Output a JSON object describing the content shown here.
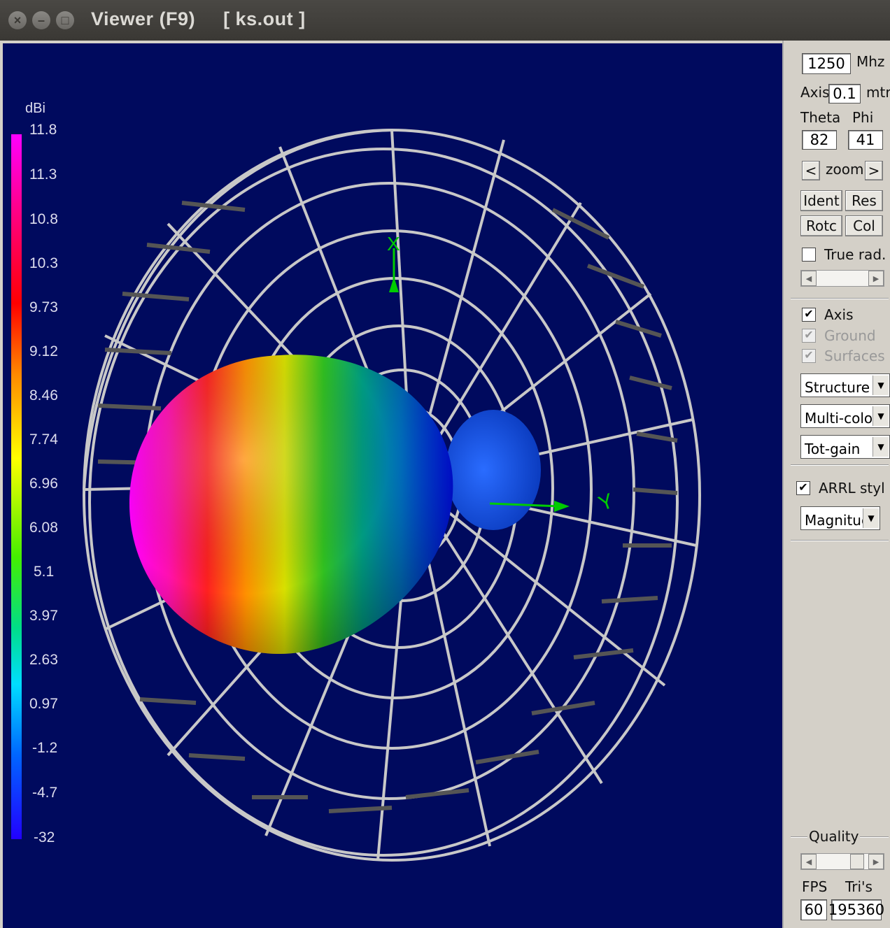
{
  "window": {
    "title": "Viewer (F9)     [ ks.out ]",
    "buttons": [
      "close-icon",
      "minimize-icon",
      "maximize-icon"
    ]
  },
  "legend": {
    "unit": "dBi",
    "ticks": [
      "11.8",
      "11.3",
      "10.8",
      "10.3",
      "9.73",
      "9.12",
      "8.46",
      "7.74",
      "6.96",
      "6.08",
      "5.1",
      "3.97",
      "2.63",
      "0.97",
      "-1.2",
      "-4.7",
      "-32"
    ]
  },
  "axes": {
    "x_label": "X",
    "y_label": "Y"
  },
  "panel": {
    "frequency": "1250",
    "frequency_unit": "Mhz",
    "axis_label": "Axis",
    "axis_value": "0.1",
    "axis_unit": "mtr",
    "theta_label": "Theta",
    "phi_label": "Phi",
    "theta_value": "82",
    "phi_value": "41",
    "zoom_left": "<",
    "zoom_label": "zoom",
    "zoom_right": ">",
    "ident_label": "Ident",
    "res_label": "Res",
    "rotc_label": "Rotc",
    "col_label": "Col",
    "true_rad_label": "True rad.",
    "true_rad_checked": false,
    "axis_check_label": "Axis",
    "ground_label": "Ground",
    "surfaces_label": "Surfaces",
    "structure_select": "Structure",
    "color_select": "Multi-colo",
    "gain_select": "Tot-gain",
    "arrl_label": "ARRL styl",
    "magnitude_select": "Magnituc",
    "quality_label": "Quality",
    "fps_label": "FPS",
    "tris_label": "Tri's",
    "fps_value": "60",
    "tris_value": "195360"
  },
  "colors": {
    "viewport_bg": "#000a5e",
    "wire": "#c8c8c8",
    "axis_green": "#00cc00"
  }
}
